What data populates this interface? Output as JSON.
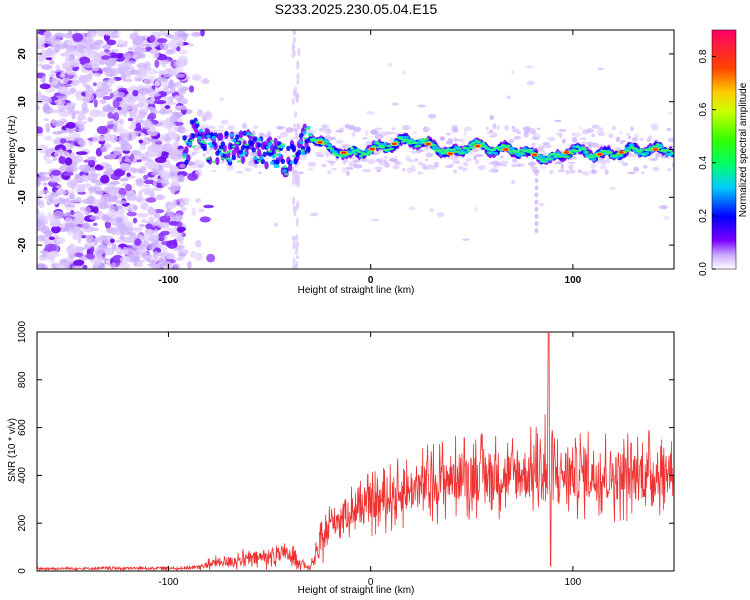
{
  "title": "S233.2025.230.05.04.E15",
  "chart_data": [
    {
      "type": "heatmap",
      "title": "S233.2025.230.05.04.E15",
      "xlabel": "Height of straight line (km)",
      "ylabel": "Frequency (Hz)",
      "xlim": [
        -165,
        150
      ],
      "ylim": [
        -25,
        25
      ],
      "xticks": [
        -100,
        0,
        100
      ],
      "yticks": [
        -20,
        -10,
        0,
        10,
        20
      ],
      "colorbar": {
        "label": "Normalized spectral amplitude",
        "ticks": [
          0.0,
          0.2,
          0.4,
          0.6,
          0.8
        ],
        "range": [
          0.0,
          0.9
        ]
      },
      "ridge": {
        "description_free": true,
        "x": [
          -90,
          -80,
          -70,
          -60,
          -50,
          -40,
          -30,
          -20,
          -10,
          0,
          10,
          20,
          30,
          40,
          50,
          60,
          70,
          80,
          90,
          100,
          110,
          120,
          130,
          140,
          150
        ],
        "freq": [
          4,
          1,
          0,
          1,
          -1,
          -2,
          3,
          0,
          -1,
          0,
          1,
          2,
          1,
          -1,
          1,
          0,
          0,
          -1,
          -2,
          0,
          -1,
          -1,
          0,
          0,
          0
        ]
      }
    },
    {
      "type": "line",
      "xlabel": "Height of straight line (km)",
      "ylabel": "SNR (10 * v/v)",
      "xlim": [
        -165,
        150
      ],
      "ylim": [
        0,
        1000
      ],
      "xticks": [
        -100,
        0,
        100
      ],
      "yticks": [
        0,
        200,
        400,
        600,
        800,
        1000
      ],
      "series": [
        {
          "name": "SNR",
          "color": "#ee3333",
          "envelope_x": [
            -165,
            -100,
            -85,
            -80,
            -70,
            -60,
            -50,
            -40,
            -35,
            -30,
            -25,
            -20,
            -10,
            0,
            10,
            20,
            30,
            40,
            50,
            60,
            70,
            80,
            85,
            88,
            90,
            100,
            110,
            120,
            130,
            140,
            150
          ],
          "envelope_mean": [
            10,
            12,
            15,
            30,
            40,
            50,
            60,
            70,
            40,
            10,
            100,
            200,
            250,
            280,
            310,
            340,
            370,
            390,
            400,
            400,
            400,
            410,
            420,
            420,
            400,
            410,
            410,
            400,
            400,
            410,
            420
          ],
          "envelope_amp": [
            8,
            10,
            15,
            30,
            40,
            50,
            60,
            60,
            40,
            10,
            100,
            100,
            120,
            140,
            150,
            160,
            180,
            180,
            190,
            190,
            190,
            200,
            220,
            560,
            200,
            200,
            210,
            200,
            200,
            190,
            180
          ]
        }
      ]
    }
  ]
}
